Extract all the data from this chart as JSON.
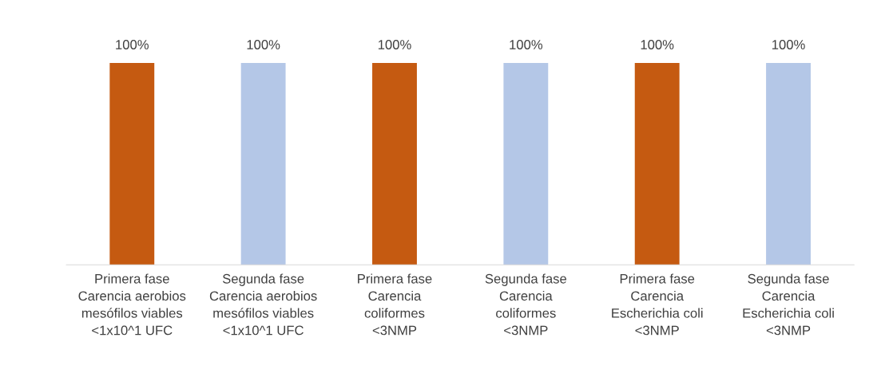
{
  "chart_data": {
    "type": "bar",
    "categories": [
      "Primera fase\nCarencia aerobios\nmesófilos viables\n<1x10^1 UFC",
      "Segunda fase\nCarencia aerobios\nmesófilos viables\n<1x10^1 UFC",
      "Primera fase\nCarencia\ncoliformes\n<3NMP",
      "Segunda fase\nCarencia\ncoliformes\n<3NMP",
      "Primera fase\nCarencia\nEscherichia coli\n<3NMP",
      "Segunda fase\nCarencia\nEscherichia coli\n<3NMP"
    ],
    "values": [
      100,
      100,
      100,
      100,
      100,
      100
    ],
    "colors": [
      "#c55a11",
      "#b4c7e7",
      "#c55a11",
      "#b4c7e7",
      "#c55a11",
      "#b4c7e7"
    ],
    "value_labels": [
      "100%",
      "100%",
      "100%",
      "100%",
      "100%",
      "100%"
    ],
    "grid": false,
    "legend": false
  }
}
